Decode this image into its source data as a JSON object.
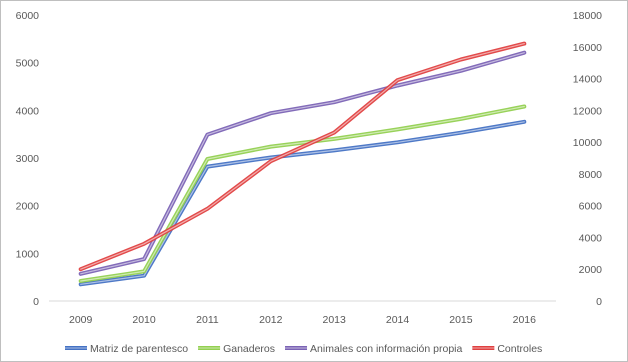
{
  "chart_data": {
    "type": "line",
    "title": "",
    "xlabel": "",
    "ylabel": "",
    "categories": [
      "2009",
      "2010",
      "2011",
      "2012",
      "2013",
      "2014",
      "2015",
      "2016"
    ],
    "y_left": {
      "range": [
        0,
        6000
      ],
      "ticks": [
        0,
        1000,
        2000,
        3000,
        4000,
        5000,
        6000
      ]
    },
    "y_right": {
      "range": [
        0,
        18000
      ],
      "ticks": [
        0,
        2000,
        4000,
        6000,
        8000,
        10000,
        12000,
        14000,
        16000,
        18000
      ]
    },
    "series": [
      {
        "name": "Matriz de parentesco",
        "axis": "left",
        "color": "#4472c4",
        "values": [
          350,
          530,
          2820,
          3010,
          3160,
          3330,
          3530,
          3760
        ]
      },
      {
        "name": "Ganaderos",
        "axis": "left",
        "color": "#92d050",
        "values": [
          420,
          620,
          2980,
          3240,
          3400,
          3600,
          3820,
          4080
        ]
      },
      {
        "name": "Animales con información propia",
        "axis": "left",
        "color": "#7b63b5",
        "values": [
          570,
          880,
          3490,
          3940,
          4170,
          4520,
          4830,
          5210
        ]
      },
      {
        "name": "Controles",
        "axis": "right",
        "color": "#e04040",
        "values": [
          2000,
          3600,
          5800,
          8800,
          10600,
          13900,
          15200,
          16200
        ]
      }
    ],
    "grid": false,
    "legend_position": "bottom"
  }
}
